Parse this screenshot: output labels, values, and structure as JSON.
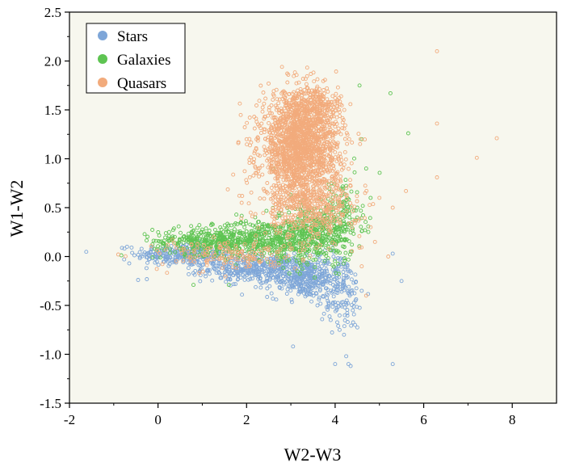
{
  "chart_data": {
    "type": "scatter",
    "title": "",
    "xlabel": "W2-W3",
    "ylabel": "W1-W2",
    "xlim": [
      -2,
      9
    ],
    "ylim": [
      -1.5,
      2.5
    ],
    "x_ticks": [
      -2,
      0,
      2,
      4,
      6,
      8
    ],
    "y_ticks": [
      -1.5,
      -1.0,
      -0.5,
      0.0,
      0.5,
      1.0,
      1.5,
      2.0,
      2.5
    ],
    "x_tick_labels": [
      "-2",
      "0",
      "2",
      "4",
      "6",
      "8"
    ],
    "y_tick_labels": [
      "-1.5",
      "-1.0",
      "-0.5",
      "0.0",
      "0.5",
      "1.0",
      "1.5",
      "2.0",
      "2.5"
    ],
    "grid": false,
    "background": "#f7f7ee",
    "legend_position": "top-left",
    "marker": "hollow-circle",
    "series": [
      {
        "name": "Stars",
        "color": "#7ea6d8",
        "clusters": [
          {
            "cx": 0.6,
            "cy": 0.02,
            "sx": 0.55,
            "sy": 0.06,
            "n": 280
          },
          {
            "cx": 2.2,
            "cy": -0.12,
            "sx": 0.6,
            "sy": 0.07,
            "n": 360
          },
          {
            "cx": 3.3,
            "cy": -0.22,
            "sx": 0.4,
            "sy": 0.1,
            "n": 320
          },
          {
            "cx": 4.1,
            "cy": -0.35,
            "sx": 0.28,
            "sy": 0.2,
            "n": 150
          }
        ],
        "points": [
          {
            "x": -0.7,
            "y": 0.1
          },
          {
            "x": -0.65,
            "y": -0.07
          },
          {
            "x": -0.45,
            "y": -0.24
          },
          {
            "x": 3.05,
            "y": -0.92
          },
          {
            "x": 3.6,
            "y": -0.5
          },
          {
            "x": 3.9,
            "y": -0.65
          },
          {
            "x": 4.0,
            "y": -1.1
          },
          {
            "x": 4.25,
            "y": -1.02
          },
          {
            "x": 4.3,
            "y": -1.1
          },
          {
            "x": 4.35,
            "y": -1.12
          },
          {
            "x": 4.2,
            "y": -0.8
          },
          {
            "x": 4.45,
            "y": -0.7
          },
          {
            "x": 4.1,
            "y": -0.75
          },
          {
            "x": 5.3,
            "y": -1.1
          },
          {
            "x": 5.5,
            "y": -0.25
          },
          {
            "x": 5.3,
            "y": 0.03
          },
          {
            "x": 4.6,
            "y": -0.35
          },
          {
            "x": 4.4,
            "y": -0.55
          }
        ]
      },
      {
        "name": "Galaxies",
        "color": "#5ec452",
        "clusters": [
          {
            "cx": 1.1,
            "cy": 0.16,
            "sx": 0.6,
            "sy": 0.07,
            "n": 330
          },
          {
            "cx": 2.4,
            "cy": 0.18,
            "sx": 0.55,
            "sy": 0.1,
            "n": 380
          },
          {
            "cx": 3.5,
            "cy": 0.22,
            "sx": 0.45,
            "sy": 0.15,
            "n": 380
          },
          {
            "cx": 4.1,
            "cy": 0.42,
            "sx": 0.25,
            "sy": 0.2,
            "n": 140
          }
        ],
        "points": [
          {
            "x": 5.25,
            "y": 1.67
          },
          {
            "x": 5.65,
            "y": 1.26
          },
          {
            "x": 4.55,
            "y": 1.75
          },
          {
            "x": 4.6,
            "y": 1.2
          },
          {
            "x": 4.7,
            "y": 0.9
          },
          {
            "x": 4.8,
            "y": 0.6
          },
          {
            "x": 0.8,
            "y": -0.29
          },
          {
            "x": 1.6,
            "y": -0.29
          },
          {
            "x": 4.5,
            "y": 0.5
          },
          {
            "x": 2.6,
            "y": 0.9
          }
        ]
      },
      {
        "name": "Quasars",
        "color": "#f2ab7c",
        "clusters": [
          {
            "cx": 3.2,
            "cy": 1.1,
            "sx": 0.45,
            "sy": 0.28,
            "n": 1700
          },
          {
            "cx": 3.5,
            "cy": 1.5,
            "sx": 0.35,
            "sy": 0.12,
            "n": 250
          },
          {
            "cx": 3.5,
            "cy": 0.5,
            "sx": 0.55,
            "sy": 0.15,
            "n": 330
          },
          {
            "cx": 1.6,
            "cy": 0.02,
            "sx": 0.8,
            "sy": 0.08,
            "n": 160
          }
        ],
        "points": [
          {
            "x": 6.3,
            "y": 2.1
          },
          {
            "x": 6.3,
            "y": 1.36
          },
          {
            "x": 7.65,
            "y": 1.21
          },
          {
            "x": 7.2,
            "y": 1.01
          },
          {
            "x": 6.3,
            "y": 0.81
          },
          {
            "x": 5.6,
            "y": 0.67
          },
          {
            "x": 5.3,
            "y": 0.5
          },
          {
            "x": 5.0,
            "y": 0.6
          },
          {
            "x": 4.8,
            "y": 0.3
          },
          {
            "x": 4.9,
            "y": 0.15
          },
          {
            "x": 5.2,
            "y": 0.0
          },
          {
            "x": 4.7,
            "y": -0.4
          },
          {
            "x": 4.6,
            "y": -0.1
          },
          {
            "x": 2.0,
            "y": 1.2
          },
          {
            "x": 1.9,
            "y": 0.62
          }
        ]
      }
    ]
  }
}
